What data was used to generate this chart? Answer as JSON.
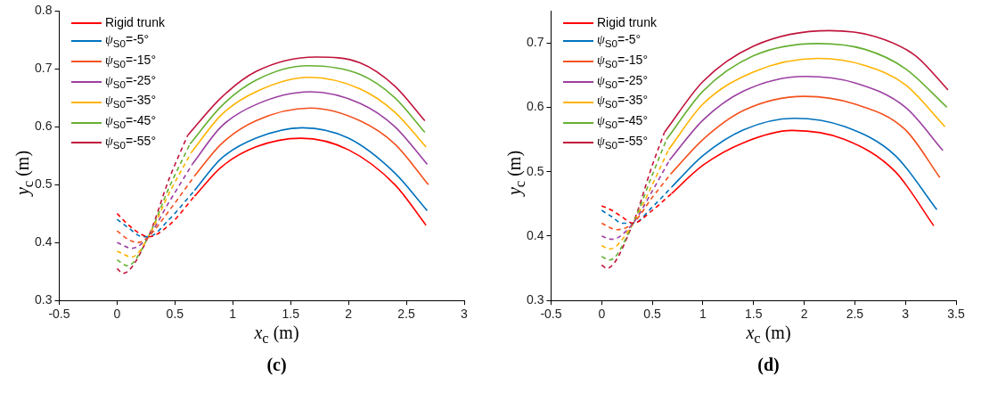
{
  "chart_data": [
    {
      "type": "line",
      "title": "(c)",
      "xlabel": "x$_{c}$ (m)",
      "ylabel": "y$_{c}$ (m)",
      "xlim": [
        -0.5,
        3
      ],
      "xticks": [
        -0.5,
        0,
        0.5,
        1,
        1.5,
        2,
        2.5,
        3
      ],
      "ylim": [
        0.3,
        0.8
      ],
      "yticks": [
        0.3,
        0.4,
        0.5,
        0.6,
        0.7,
        0.8
      ],
      "grid": false,
      "legend": "top left",
      "marker": "none",
      "series": [
        {
          "color": "#ff0000",
          "line_style": "dashed",
          "x": [
            0,
            0.1,
            0.2,
            0.27,
            0.45,
            0.67
          ],
          "values": [
            0.45,
            0.43,
            0.415,
            0.41,
            0.43,
            0.48
          ]
        },
        {
          "name": "Rigid trunk",
          "color": "#ff0000",
          "line_style": "solid",
          "x": [
            0.67,
            0.9,
            1.2,
            1.59,
            2.0,
            2.4,
            2.67
          ],
          "values": [
            0.48,
            0.53,
            0.565,
            0.58,
            0.56,
            0.5,
            0.43
          ]
        },
        {
          "color": "#0072bd",
          "line_style": "dashed",
          "x": [
            0,
            0.1,
            0.22,
            0.27,
            0.45,
            0.67
          ],
          "values": [
            0.44,
            0.425,
            0.41,
            0.41,
            0.44,
            0.49
          ]
        },
        {
          "name": "ψ$_{S0}$=-5°",
          "color": "#0072bd",
          "line_style": "solid",
          "x": [
            0.67,
            0.9,
            1.2,
            1.6,
            2.0,
            2.4,
            2.68
          ],
          "values": [
            0.49,
            0.545,
            0.58,
            0.598,
            0.58,
            0.52,
            0.455
          ]
        },
        {
          "color": "#f4511e",
          "line_style": "dashed",
          "x": [
            0,
            0.1,
            0.18,
            0.27,
            0.45,
            0.67
          ],
          "values": [
            0.42,
            0.405,
            0.4,
            0.41,
            0.455,
            0.515
          ]
        },
        {
          "name": "ψ$_{S0}$=-15°",
          "color": "#f4511e",
          "line_style": "solid",
          "x": [
            0.67,
            0.9,
            1.2,
            1.67,
            2.1,
            2.4,
            2.69
          ],
          "values": [
            0.515,
            0.57,
            0.61,
            0.632,
            0.61,
            0.57,
            0.5
          ]
        },
        {
          "color": "#9b3fa0",
          "line_style": "dashed",
          "x": [
            0,
            0.13,
            0.27,
            0.45,
            0.65
          ],
          "values": [
            0.4,
            0.39,
            0.41,
            0.47,
            0.535
          ]
        },
        {
          "name": "ψ$_{S0}$=-25°",
          "color": "#9b3fa0",
          "line_style": "solid",
          "x": [
            0.65,
            0.9,
            1.2,
            1.67,
            2.1,
            2.4,
            2.68
          ],
          "values": [
            0.535,
            0.6,
            0.638,
            0.66,
            0.64,
            0.6,
            0.535
          ]
        },
        {
          "color": "#ffb300",
          "line_style": "dashed",
          "x": [
            0,
            0.13,
            0.27,
            0.45,
            0.64
          ],
          "values": [
            0.385,
            0.375,
            0.41,
            0.485,
            0.555
          ]
        },
        {
          "name": "ψ$_{S0}$=-35°",
          "color": "#ffb300",
          "line_style": "solid",
          "x": [
            0.64,
            0.9,
            1.2,
            1.66,
            2.1,
            2.4,
            2.67
          ],
          "values": [
            0.555,
            0.62,
            0.66,
            0.685,
            0.665,
            0.625,
            0.565
          ]
        },
        {
          "color": "#66b032",
          "line_style": "dashed",
          "x": [
            0,
            0.09,
            0.27,
            0.45,
            0.63
          ],
          "values": [
            0.37,
            0.36,
            0.41,
            0.495,
            0.57
          ]
        },
        {
          "name": "ψ$_{S0}$=-45°",
          "color": "#66b032",
          "line_style": "solid",
          "x": [
            0.63,
            0.9,
            1.2,
            1.65,
            2.1,
            2.4,
            2.66
          ],
          "values": [
            0.57,
            0.635,
            0.68,
            0.705,
            0.69,
            0.65,
            0.59
          ]
        },
        {
          "color": "#c0143c",
          "line_style": "dashed",
          "x": [
            0,
            0.05,
            0.27,
            0.45,
            0.61
          ],
          "values": [
            0.355,
            0.347,
            0.41,
            0.51,
            0.585
          ]
        },
        {
          "name": "ψ$_{S0}$=-55°",
          "color": "#c0143c",
          "line_style": "solid",
          "x": [
            0.61,
            0.9,
            1.2,
            1.72,
            2.1,
            2.4,
            2.66
          ],
          "values": [
            0.585,
            0.65,
            0.695,
            0.72,
            0.71,
            0.67,
            0.61
          ]
        }
      ]
    },
    {
      "type": "line",
      "title": "(d)",
      "xlabel": "x$_{c}$ (m)",
      "ylabel": "y$_{c}$ (m)",
      "xlim": [
        -0.5,
        3.5
      ],
      "xticks": [
        -0.5,
        0,
        0.5,
        1,
        1.5,
        2,
        2.5,
        3,
        3.5
      ],
      "ylim": [
        0.3,
        0.75
      ],
      "yticks": [
        0.3,
        0.4,
        0.5,
        0.6,
        0.7
      ],
      "grid": false,
      "legend": "top left",
      "marker": "none",
      "series": [
        {
          "color": "#ff0000",
          "line_style": "dashed",
          "x": [
            0,
            0.1,
            0.2,
            0.31,
            0.5,
            0.69
          ],
          "values": [
            0.447,
            0.44,
            0.43,
            0.42,
            0.44,
            0.466
          ]
        },
        {
          "name": "Rigid trunk",
          "color": "#ff0000",
          "line_style": "solid",
          "x": [
            0.69,
            1.0,
            1.4,
            1.88,
            2.4,
            2.9,
            3.28
          ],
          "values": [
            0.466,
            0.51,
            0.545,
            0.564,
            0.55,
            0.5,
            0.416
          ]
        },
        {
          "color": "#0072bd",
          "line_style": "dashed",
          "x": [
            0,
            0.1,
            0.2,
            0.31,
            0.5,
            0.69
          ],
          "values": [
            0.44,
            0.43,
            0.42,
            0.42,
            0.445,
            0.476
          ]
        },
        {
          "name": "ψ$_{S0}$=-5°",
          "color": "#0072bd",
          "line_style": "solid",
          "x": [
            0.69,
            1.0,
            1.4,
            1.9,
            2.4,
            2.9,
            3.31
          ],
          "values": [
            0.476,
            0.525,
            0.565,
            0.583,
            0.57,
            0.525,
            0.441
          ]
        },
        {
          "color": "#f4511e",
          "line_style": "dashed",
          "x": [
            0,
            0.15,
            0.31,
            0.5,
            0.68
          ],
          "values": [
            0.42,
            0.41,
            0.42,
            0.46,
            0.496
          ]
        },
        {
          "name": "ψ$_{S0}$=-15°",
          "color": "#f4511e",
          "line_style": "solid",
          "x": [
            0.68,
            1.0,
            1.4,
            2.0,
            2.5,
            3.0,
            3.34
          ],
          "values": [
            0.496,
            0.55,
            0.595,
            0.617,
            0.605,
            0.565,
            0.491
          ]
        },
        {
          "color": "#9b3fa0",
          "line_style": "dashed",
          "x": [
            0,
            0.1,
            0.31,
            0.5,
            0.67
          ],
          "values": [
            0.4,
            0.395,
            0.42,
            0.47,
            0.518
          ]
        },
        {
          "name": "ψ$_{S0}$=-25°",
          "color": "#9b3fa0",
          "line_style": "solid",
          "x": [
            0.67,
            1.0,
            1.4,
            2.01,
            2.5,
            3.0,
            3.37
          ],
          "values": [
            0.518,
            0.58,
            0.625,
            0.648,
            0.638,
            0.6,
            0.533
          ]
        },
        {
          "color": "#ffb300",
          "line_style": "dashed",
          "x": [
            0,
            0.08,
            0.31,
            0.5,
            0.66
          ],
          "values": [
            0.385,
            0.38,
            0.42,
            0.48,
            0.534
          ]
        },
        {
          "name": "ψ$_{S0}$=-35°",
          "color": "#ffb300",
          "line_style": "solid",
          "x": [
            0.66,
            1.0,
            1.5,
            2.14,
            2.6,
            3.0,
            3.39
          ],
          "values": [
            0.534,
            0.605,
            0.655,
            0.676,
            0.665,
            0.635,
            0.57
          ]
        },
        {
          "color": "#66b032",
          "line_style": "dashed",
          "x": [
            0,
            0.08,
            0.31,
            0.5,
            0.64
          ],
          "values": [
            0.368,
            0.363,
            0.42,
            0.495,
            0.55
          ]
        },
        {
          "name": "ψ$_{S0}$=-45°",
          "color": "#66b032",
          "line_style": "solid",
          "x": [
            0.64,
            1.0,
            1.5,
            2.14,
            2.6,
            3.0,
            3.41
          ],
          "values": [
            0.55,
            0.625,
            0.68,
            0.699,
            0.69,
            0.66,
            0.6
          ]
        },
        {
          "color": "#c0143c",
          "line_style": "dashed",
          "x": [
            0,
            0.05,
            0.31,
            0.5,
            0.62
          ],
          "values": [
            0.355,
            0.35,
            0.42,
            0.51,
            0.561
          ]
        },
        {
          "name": "ψ$_{S0}$=-55°",
          "color": "#c0143c",
          "line_style": "solid",
          "x": [
            0.62,
            1.0,
            1.5,
            2.25,
            2.7,
            3.1,
            3.42
          ],
          "values": [
            0.561,
            0.64,
            0.695,
            0.719,
            0.71,
            0.68,
            0.627
          ]
        }
      ]
    }
  ]
}
